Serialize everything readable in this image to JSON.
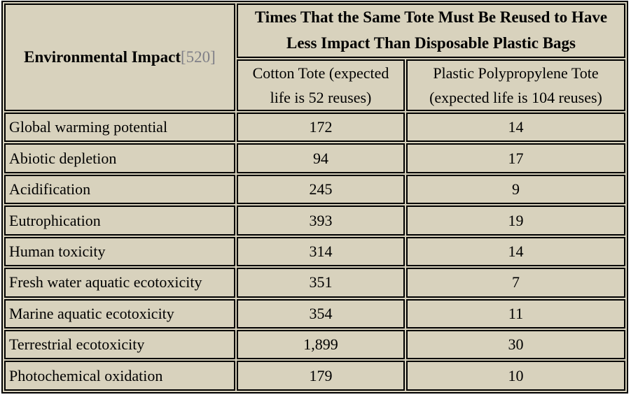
{
  "table": {
    "corner_header": {
      "label": "Environmental Impact",
      "citation": "[520]"
    },
    "title": "Times That the Same Tote Must Be Reused to Have Less Impact Than Disposable Plastic Bags",
    "column_headers": [
      "Cotton Tote (expected life is 52 reuses)",
      "Plastic Polypropylene Tote (expected life is 104 reuses)"
    ],
    "rows": [
      {
        "label": "Global warming potential",
        "cotton": "172",
        "polypropylene": "14"
      },
      {
        "label": "Abiotic depletion",
        "cotton": "94",
        "polypropylene": "17"
      },
      {
        "label": "Acidification",
        "cotton": "245",
        "polypropylene": "9"
      },
      {
        "label": "Eutrophication",
        "cotton": "393",
        "polypropylene": "19"
      },
      {
        "label": "Human toxicity",
        "cotton": "314",
        "polypropylene": "14"
      },
      {
        "label": "Fresh water aquatic ecotoxicity",
        "cotton": "351",
        "polypropylene": "7"
      },
      {
        "label": "Marine aquatic ecotoxicity",
        "cotton": "354",
        "polypropylene": "11"
      },
      {
        "label": "Terrestrial ecotoxicity",
        "cotton": "1,899",
        "polypropylene": "30"
      },
      {
        "label": "Photochemical oxidation",
        "cotton": "179",
        "polypropylene": "10"
      }
    ]
  },
  "colors": {
    "cell_background": "#d8d2bd",
    "border": "#000000",
    "text": "#000000",
    "citation_text": "#7f7f87",
    "page_background": "#ffffff"
  },
  "chart_data": {
    "type": "table",
    "title": "Times That the Same Tote Must Be Reused to Have Less Impact Than Disposable Plastic Bags",
    "row_header_label": "Environmental Impact",
    "citation": "[520]",
    "categories": [
      "Global warming potential",
      "Abiotic depletion",
      "Acidification",
      "Eutrophication",
      "Human toxicity",
      "Fresh water aquatic ecotoxicity",
      "Marine aquatic ecotoxicity",
      "Terrestrial ecotoxicity",
      "Photochemical oxidation"
    ],
    "series": [
      {
        "name": "Cotton Tote (expected life is 52 reuses)",
        "values": [
          172,
          94,
          245,
          393,
          314,
          351,
          354,
          1899,
          179
        ]
      },
      {
        "name": "Plastic Polypropylene Tote (expected life is 104 reuses)",
        "values": [
          14,
          17,
          9,
          19,
          14,
          7,
          11,
          30,
          10
        ]
      }
    ]
  }
}
